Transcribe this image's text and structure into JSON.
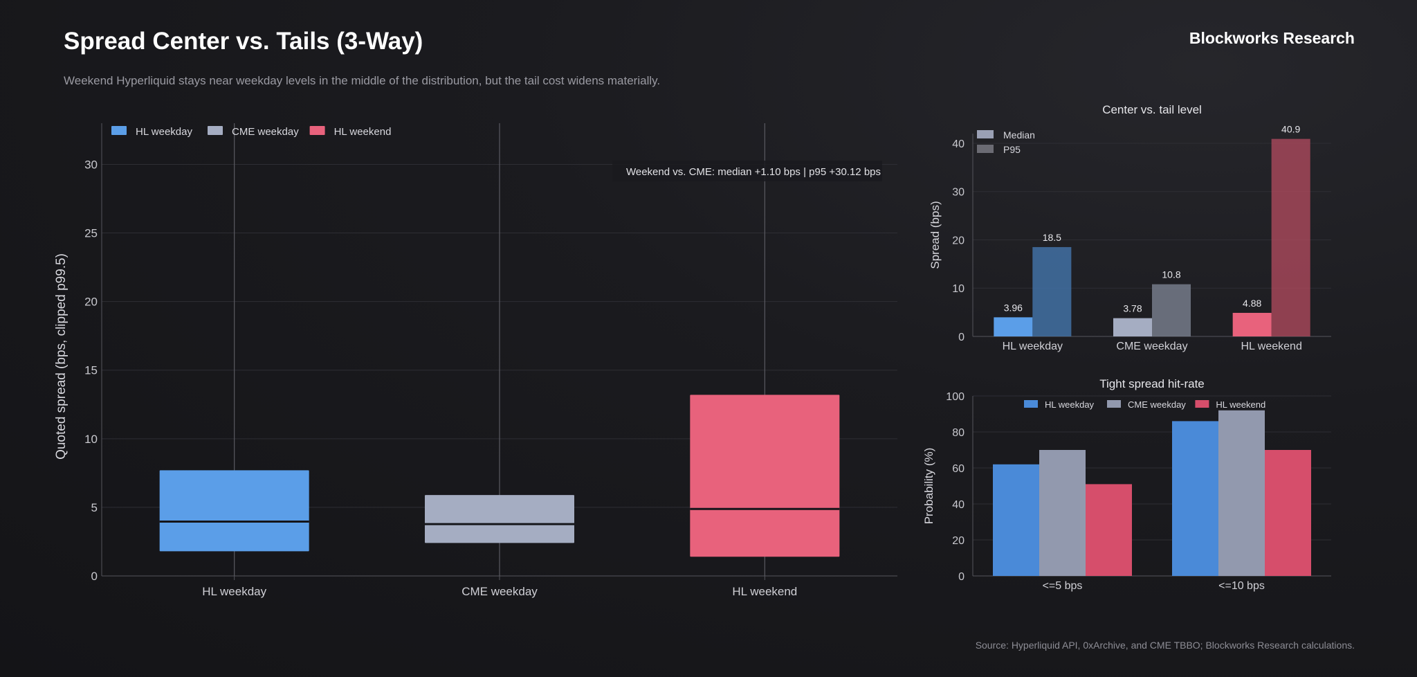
{
  "header": {
    "title": "Spread Center vs. Tails (3-Way)",
    "brand": "Blockworks Research",
    "subtitle": "Weekend Hyperliquid stays near weekday levels in the middle of the distribution, but the tail cost widens materially.",
    "source": "Source: Hyperliquid API, 0xArchive, and CME TBBO; Blockworks Research calculations."
  },
  "colors": {
    "hl_weekday": "#5b9ee8",
    "cme_weekday": "#a5adc2",
    "hl_weekend": "#e8627c"
  },
  "chart_data": [
    {
      "type": "box",
      "ylabel": "Quoted spread (bps, clipped p99.5)",
      "ylim": [
        0,
        33
      ],
      "yticks": [
        0,
        5,
        10,
        15,
        20,
        25,
        30
      ],
      "categories": [
        "HL weekday",
        "CME weekday",
        "HL weekend"
      ],
      "legend": [
        "HL weekday",
        "CME weekday",
        "HL weekend"
      ],
      "legend_position": "top-left",
      "annotation": "Weekend vs. CME: median +1.10 bps | p95 +30.12 bps",
      "boxes": [
        {
          "name": "HL weekday",
          "q1": 1.8,
          "median": 3.96,
          "q3": 7.7
        },
        {
          "name": "CME weekday",
          "q1": 2.4,
          "median": 3.78,
          "q3": 5.9
        },
        {
          "name": "HL weekend",
          "q1": 1.4,
          "median": 4.88,
          "q3": 13.2
        }
      ]
    },
    {
      "type": "bar",
      "title": "Center vs. tail level",
      "ylabel": "Spread (bps)",
      "ylim": [
        0,
        42
      ],
      "yticks": [
        0,
        10,
        20,
        30,
        40
      ],
      "categories": [
        "HL weekday",
        "CME weekday",
        "HL weekend"
      ],
      "legend": [
        "Median",
        "P95"
      ],
      "legend_position": "top-left",
      "series": [
        {
          "name": "Median",
          "values": [
            3.96,
            3.78,
            4.88
          ],
          "labels": [
            "3.96",
            "3.78",
            "4.88"
          ]
        },
        {
          "name": "P95",
          "values": [
            18.5,
            10.8,
            40.9
          ],
          "labels": [
            "18.5",
            "10.8",
            "40.9"
          ]
        }
      ]
    },
    {
      "type": "bar",
      "title": "Tight spread hit-rate",
      "ylabel": "Probability (%)",
      "ylim": [
        0,
        100
      ],
      "yticks": [
        0,
        20,
        40,
        60,
        80,
        100
      ],
      "categories": [
        "<=5 bps",
        "<=10 bps"
      ],
      "legend": [
        "HL weekday",
        "CME weekday",
        "HL weekend"
      ],
      "legend_position": "top",
      "series": [
        {
          "name": "HL weekday",
          "values": [
            62,
            86
          ]
        },
        {
          "name": "CME weekday",
          "values": [
            70,
            92
          ]
        },
        {
          "name": "HL weekend",
          "values": [
            51,
            70
          ]
        }
      ]
    }
  ]
}
